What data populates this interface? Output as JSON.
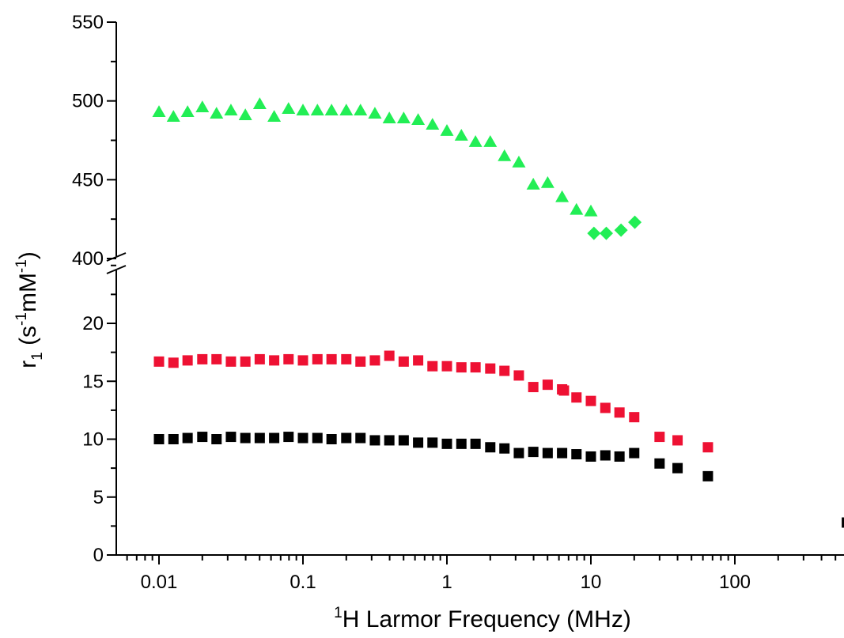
{
  "chart_data": {
    "type": "scatter",
    "title": "",
    "xlabel": {
      "sup": "1",
      "main": "H Larmor Frequency (MHz)"
    },
    "ylabel": {
      "r": "r",
      "sub": "1",
      "open": " (s",
      "s_exp": "-1",
      "mid": "mM",
      "m_exp": "-1",
      "close": ")"
    },
    "x_scale": "log",
    "xlim": [
      0.0045,
      600
    ],
    "x_ticks": [
      {
        "value": 0.01,
        "label": "0.01"
      },
      {
        "value": 0.1,
        "label": "0.1"
      },
      {
        "value": 1,
        "label": "1"
      },
      {
        "value": 10,
        "label": "10"
      },
      {
        "value": 100,
        "label": "100"
      }
    ],
    "y_broken": true,
    "y_segments": [
      {
        "range": [
          0,
          25
        ],
        "ticks": [
          {
            "value": 0,
            "label": "0"
          },
          {
            "value": 5,
            "label": "5"
          },
          {
            "value": 10,
            "label": "10"
          },
          {
            "value": 15,
            "label": "15"
          },
          {
            "value": 20,
            "label": "20"
          }
        ]
      },
      {
        "range": [
          400,
          550
        ],
        "ticks": [
          {
            "value": 400,
            "label": "400"
          },
          {
            "value": 450,
            "label": "450"
          },
          {
            "value": 500,
            "label": "500"
          },
          {
            "value": 550,
            "label": "550"
          }
        ]
      }
    ],
    "grid": false,
    "legend": "none",
    "series": [
      {
        "marker": "triangle",
        "color": "#22ee55",
        "x": [
          0.01,
          0.0126,
          0.0158,
          0.02,
          0.0251,
          0.0316,
          0.0398,
          0.0501,
          0.0631,
          0.0794,
          0.1,
          0.126,
          0.158,
          0.2,
          0.251,
          0.316,
          0.398,
          0.501,
          0.631,
          0.794,
          1.0,
          1.26,
          1.58,
          2.0,
          2.51,
          3.16,
          3.98,
          5.01,
          6.31,
          7.94,
          10.0
        ],
        "y": [
          493,
          490,
          493,
          496,
          492,
          494,
          491,
          498,
          490,
          495,
          494,
          494,
          494,
          494,
          494,
          492,
          489,
          489,
          488,
          485,
          481,
          478,
          474,
          474,
          465,
          461,
          447,
          448,
          439,
          431,
          430
        ]
      },
      {
        "marker": "diamond",
        "color": "#22ee55",
        "x": [
          10.5,
          12.8,
          16.2,
          20.2
        ],
        "y": [
          416,
          416,
          418,
          423
        ]
      },
      {
        "marker": "square",
        "color": "#ee1133",
        "x": [
          0.01,
          0.0126,
          0.0158,
          0.02,
          0.0251,
          0.0316,
          0.0398,
          0.0501,
          0.0631,
          0.0794,
          0.1,
          0.126,
          0.158,
          0.2,
          0.251,
          0.316,
          0.398,
          0.501,
          0.631,
          0.794,
          1.0,
          1.26,
          1.58,
          2.0,
          2.51,
          3.16,
          3.98,
          5.01,
          6.31,
          6.5,
          7.94,
          10.0,
          12.6,
          15.8,
          20.0,
          30,
          40,
          65
        ],
        "y": [
          16.7,
          16.6,
          16.8,
          16.9,
          16.9,
          16.7,
          16.7,
          16.9,
          16.8,
          16.9,
          16.8,
          16.9,
          16.9,
          16.9,
          16.7,
          16.8,
          17.2,
          16.7,
          16.8,
          16.3,
          16.3,
          16.2,
          16.2,
          16.1,
          15.9,
          15.5,
          14.5,
          14.7,
          14.3,
          14.2,
          13.6,
          13.3,
          12.7,
          12.3,
          11.9,
          10.2,
          9.9,
          9.3
        ]
      },
      {
        "marker": "square",
        "color": "#000000",
        "x": [
          0.01,
          0.0126,
          0.0158,
          0.02,
          0.0251,
          0.0316,
          0.0398,
          0.0501,
          0.0631,
          0.0794,
          0.1,
          0.126,
          0.158,
          0.2,
          0.251,
          0.316,
          0.398,
          0.501,
          0.631,
          0.794,
          1.0,
          1.26,
          1.58,
          2.0,
          2.51,
          3.16,
          3.98,
          5.01,
          6.31,
          7.94,
          10.0,
          12.6,
          15.8,
          20.0,
          30,
          40,
          65,
          600
        ],
        "y": [
          10.0,
          10.0,
          10.1,
          10.2,
          10.0,
          10.2,
          10.1,
          10.1,
          10.1,
          10.2,
          10.1,
          10.1,
          10.0,
          10.1,
          10.1,
          9.9,
          9.9,
          9.9,
          9.7,
          9.7,
          9.6,
          9.6,
          9.6,
          9.3,
          9.2,
          8.8,
          8.9,
          8.8,
          8.8,
          8.7,
          8.5,
          8.6,
          8.5,
          8.8,
          7.9,
          7.5,
          6.8,
          2.8
        ]
      }
    ]
  }
}
